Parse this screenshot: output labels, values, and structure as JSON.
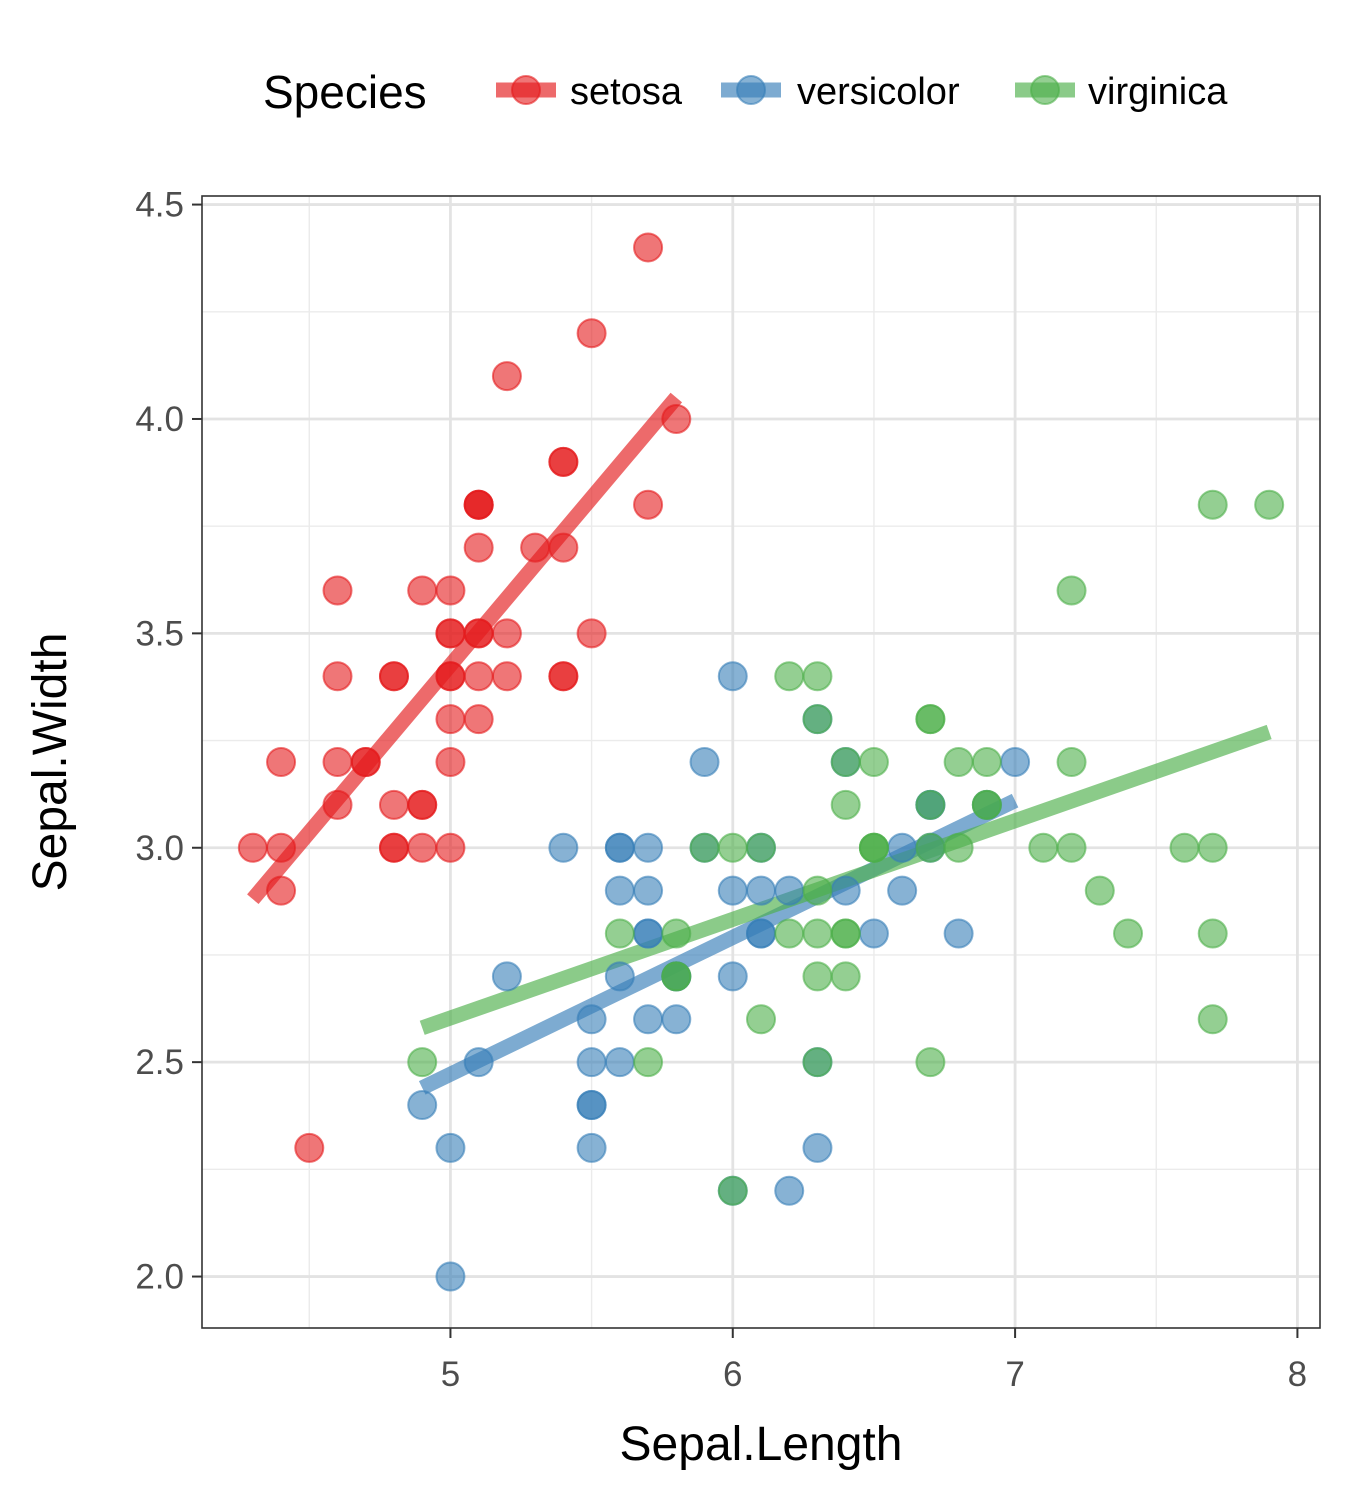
{
  "chart_data": {
    "type": "scatter",
    "title": "",
    "xlabel": "Sepal.Length",
    "ylabel": "Sepal.Width",
    "xlim": [
      4.12,
      8.08
    ],
    "ylim": [
      1.88,
      4.52
    ],
    "x_ticks": [
      5,
      6,
      7,
      8
    ],
    "y_ticks": [
      2.0,
      2.5,
      3.0,
      3.5,
      4.0,
      4.5
    ],
    "x_tick_labels": [
      "5",
      "6",
      "7",
      "8"
    ],
    "y_tick_labels": [
      "2.0",
      "2.5",
      "3.0",
      "3.5",
      "4.0",
      "4.5"
    ],
    "grid": true,
    "legend": {
      "title": "Species",
      "position": "top"
    },
    "series": [
      {
        "name": "setosa",
        "color": "#E41A1C",
        "points": [
          [
            5.1,
            3.5
          ],
          [
            4.9,
            3.0
          ],
          [
            4.7,
            3.2
          ],
          [
            4.6,
            3.1
          ],
          [
            5.0,
            3.6
          ],
          [
            5.4,
            3.9
          ],
          [
            4.6,
            3.4
          ],
          [
            5.0,
            3.4
          ],
          [
            4.4,
            2.9
          ],
          [
            4.9,
            3.1
          ],
          [
            5.4,
            3.7
          ],
          [
            4.8,
            3.4
          ],
          [
            4.8,
            3.0
          ],
          [
            4.3,
            3.0
          ],
          [
            5.8,
            4.0
          ],
          [
            5.7,
            4.4
          ],
          [
            5.4,
            3.9
          ],
          [
            5.1,
            3.5
          ],
          [
            5.7,
            3.8
          ],
          [
            5.1,
            3.8
          ],
          [
            5.4,
            3.4
          ],
          [
            5.1,
            3.7
          ],
          [
            4.6,
            3.6
          ],
          [
            5.1,
            3.3
          ],
          [
            4.8,
            3.4
          ],
          [
            5.0,
            3.0
          ],
          [
            5.0,
            3.4
          ],
          [
            5.2,
            3.5
          ],
          [
            5.2,
            3.4
          ],
          [
            4.7,
            3.2
          ],
          [
            4.8,
            3.1
          ],
          [
            5.4,
            3.4
          ],
          [
            5.2,
            4.1
          ],
          [
            5.5,
            4.2
          ],
          [
            4.9,
            3.1
          ],
          [
            5.0,
            3.2
          ],
          [
            5.5,
            3.5
          ],
          [
            4.9,
            3.6
          ],
          [
            4.4,
            3.0
          ],
          [
            5.1,
            3.4
          ],
          [
            5.0,
            3.5
          ],
          [
            4.5,
            2.3
          ],
          [
            4.4,
            3.2
          ],
          [
            5.0,
            3.5
          ],
          [
            5.1,
            3.8
          ],
          [
            4.8,
            3.0
          ],
          [
            5.1,
            3.8
          ],
          [
            4.6,
            3.2
          ],
          [
            5.3,
            3.7
          ],
          [
            5.0,
            3.3
          ]
        ],
        "trend": {
          "x": [
            4.3,
            5.8
          ],
          "y": [
            2.88,
            4.05
          ]
        }
      },
      {
        "name": "versicolor",
        "color": "#377EB8",
        "points": [
          [
            7.0,
            3.2
          ],
          [
            6.4,
            3.2
          ],
          [
            6.9,
            3.1
          ],
          [
            5.5,
            2.3
          ],
          [
            6.5,
            2.8
          ],
          [
            5.7,
            2.8
          ],
          [
            6.3,
            3.3
          ],
          [
            4.9,
            2.4
          ],
          [
            6.6,
            2.9
          ],
          [
            5.2,
            2.7
          ],
          [
            5.0,
            2.0
          ],
          [
            5.9,
            3.0
          ],
          [
            6.0,
            2.2
          ],
          [
            6.1,
            2.9
          ],
          [
            5.6,
            2.9
          ],
          [
            6.7,
            3.1
          ],
          [
            5.6,
            3.0
          ],
          [
            5.8,
            2.7
          ],
          [
            6.2,
            2.2
          ],
          [
            5.6,
            2.5
          ],
          [
            5.9,
            3.2
          ],
          [
            6.1,
            2.8
          ],
          [
            6.3,
            2.5
          ],
          [
            6.1,
            2.8
          ],
          [
            6.4,
            2.9
          ],
          [
            6.6,
            3.0
          ],
          [
            6.8,
            2.8
          ],
          [
            6.7,
            3.0
          ],
          [
            6.0,
            2.9
          ],
          [
            5.7,
            2.6
          ],
          [
            5.5,
            2.4
          ],
          [
            5.5,
            2.4
          ],
          [
            5.8,
            2.7
          ],
          [
            6.0,
            2.7
          ],
          [
            5.4,
            3.0
          ],
          [
            6.0,
            3.4
          ],
          [
            6.7,
            3.1
          ],
          [
            6.3,
            2.3
          ],
          [
            5.6,
            3.0
          ],
          [
            5.5,
            2.5
          ],
          [
            5.5,
            2.6
          ],
          [
            6.1,
            3.0
          ],
          [
            5.8,
            2.6
          ],
          [
            5.0,
            2.3
          ],
          [
            5.6,
            2.7
          ],
          [
            5.7,
            3.0
          ],
          [
            5.7,
            2.9
          ],
          [
            6.2,
            2.9
          ],
          [
            5.1,
            2.5
          ],
          [
            5.7,
            2.8
          ]
        ],
        "trend": {
          "x": [
            4.9,
            7.0
          ],
          "y": [
            2.44,
            3.11
          ]
        }
      },
      {
        "name": "virginica",
        "color": "#4DAF4A",
        "points": [
          [
            6.3,
            3.3
          ],
          [
            5.8,
            2.7
          ],
          [
            7.1,
            3.0
          ],
          [
            6.3,
            2.9
          ],
          [
            6.5,
            3.0
          ],
          [
            7.6,
            3.0
          ],
          [
            4.9,
            2.5
          ],
          [
            7.3,
            2.9
          ],
          [
            6.7,
            2.5
          ],
          [
            7.2,
            3.6
          ],
          [
            6.5,
            3.2
          ],
          [
            6.4,
            2.7
          ],
          [
            6.8,
            3.0
          ],
          [
            5.7,
            2.5
          ],
          [
            5.8,
            2.8
          ],
          [
            6.4,
            3.2
          ],
          [
            6.5,
            3.0
          ],
          [
            7.7,
            3.8
          ],
          [
            7.7,
            2.6
          ],
          [
            6.0,
            2.2
          ],
          [
            6.9,
            3.2
          ],
          [
            5.6,
            2.8
          ],
          [
            7.7,
            2.8
          ],
          [
            6.3,
            2.7
          ],
          [
            6.7,
            3.3
          ],
          [
            7.2,
            3.2
          ],
          [
            6.2,
            2.8
          ],
          [
            6.1,
            3.0
          ],
          [
            6.4,
            2.8
          ],
          [
            7.2,
            3.0
          ],
          [
            7.4,
            2.8
          ],
          [
            7.9,
            3.8
          ],
          [
            6.4,
            2.8
          ],
          [
            6.3,
            2.8
          ],
          [
            6.1,
            2.6
          ],
          [
            7.7,
            3.0
          ],
          [
            6.3,
            3.4
          ],
          [
            6.4,
            3.1
          ],
          [
            6.0,
            3.0
          ],
          [
            6.9,
            3.1
          ],
          [
            6.7,
            3.1
          ],
          [
            6.9,
            3.1
          ],
          [
            5.8,
            2.7
          ],
          [
            6.8,
            3.2
          ],
          [
            6.7,
            3.3
          ],
          [
            6.7,
            3.0
          ],
          [
            6.3,
            2.5
          ],
          [
            6.5,
            3.0
          ],
          [
            6.2,
            3.4
          ],
          [
            5.9,
            3.0
          ]
        ],
        "trend": {
          "x": [
            4.9,
            7.9
          ],
          "y": [
            2.58,
            3.27
          ]
        }
      }
    ]
  }
}
